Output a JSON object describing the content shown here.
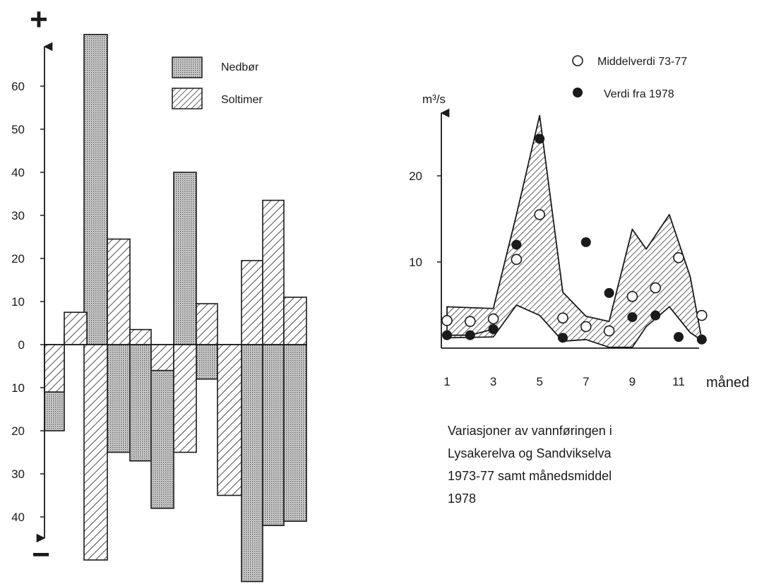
{
  "chart_data": [
    {
      "type": "bar",
      "title": "",
      "ylabel": "",
      "xlabel": "",
      "axis_sign_top": "+",
      "axis_sign_bottom": "−",
      "y_tick_labels": [
        "60",
        "50",
        "40",
        "30",
        "20",
        "10",
        "0",
        "10",
        "20",
        "30",
        "40"
      ],
      "y_tick_values": [
        60,
        50,
        40,
        30,
        20,
        10,
        0,
        -10,
        -20,
        -30,
        -40
      ],
      "ylim": [
        -50,
        76
      ],
      "periods": [
        1,
        2,
        3,
        4,
        5,
        6,
        7,
        8,
        9,
        10,
        11,
        12
      ],
      "series": [
        {
          "name": "Nedbør",
          "pattern": "dotted",
          "values": [
            -20,
            3,
            72,
            -25,
            -27,
            -38,
            40,
            -8,
            -3,
            -55,
            -42,
            -41
          ]
        },
        {
          "name": "Soltimer",
          "pattern": "hatched",
          "values": [
            -11,
            7.5,
            -50,
            24.5,
            3.5,
            -6,
            -25,
            9.5,
            -35,
            19.5,
            33.5,
            11
          ]
        }
      ],
      "legend": [
        "Nedbør",
        "Soltimer"
      ],
      "legend_position": "top-right"
    },
    {
      "type": "line",
      "title": "",
      "ylabel": "m³/s",
      "xlabel": "måned",
      "x_ticks": [
        1,
        3,
        5,
        7,
        9,
        11
      ],
      "y_ticks": [
        10,
        20
      ],
      "xlim": [
        0.8,
        12.5
      ],
      "ylim": [
        0,
        27
      ],
      "series": [
        {
          "name": "Middelverdi 73-77",
          "marker": "open-circle",
          "x": [
            1,
            2,
            3,
            4,
            5,
            6,
            7,
            8,
            9,
            10,
            11,
            12
          ],
          "y": [
            3.2,
            3.1,
            3.4,
            10.3,
            15.5,
            3.5,
            2.5,
            2.0,
            6.0,
            7.0,
            10.5,
            3.8
          ]
        },
        {
          "name": "Verdi fra 1978",
          "marker": "filled-circle",
          "x": [
            1,
            2,
            3,
            4,
            5,
            6,
            7,
            8,
            9,
            10,
            11,
            12
          ],
          "y": [
            1.5,
            1.5,
            2.2,
            12.0,
            24.3,
            1.2,
            12.3,
            6.4,
            3.6,
            3.8,
            1.3,
            1.0
          ]
        }
      ],
      "band": {
        "name": "",
        "x": [
          1,
          3,
          4,
          5,
          6,
          7,
          8,
          9,
          9.6,
          10.6,
          11.5,
          12
        ],
        "upper": [
          4.8,
          4.6,
          15.5,
          27.0,
          6.5,
          3.7,
          3.1,
          13.8,
          11.5,
          15.5,
          8.3,
          1.0
        ],
        "lower": [
          1.2,
          1.3,
          5.0,
          3.8,
          0.8,
          1.0,
          0.1,
          0.1,
          2.5,
          4.8,
          1.8,
          0.9
        ]
      },
      "legend": [
        "Middelverdi 73-77",
        "Verdi fra 1978"
      ],
      "legend_position": "top"
    }
  ],
  "caption": {
    "lines": [
      "Variasjoner av vannføringen i",
      "Lysakerelva og Sandvikselva",
      "1973-77 samt månedsmiddel",
      "1978"
    ]
  },
  "colors": {
    "ink": "#1a1a1a",
    "dot_fill": "#bdbdbd"
  }
}
